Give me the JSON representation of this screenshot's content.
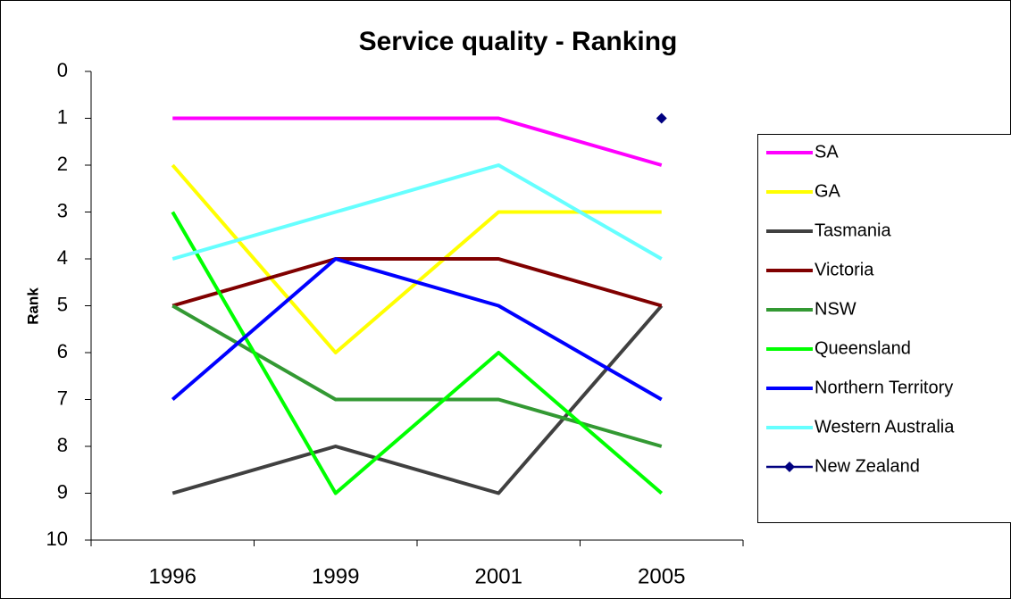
{
  "chart_data": {
    "type": "line",
    "title": "Service quality - Ranking",
    "y_label": "Rank",
    "categories": [
      "1996",
      "1999",
      "2001",
      "2005"
    ],
    "series": [
      {
        "name": "SA",
        "color": "#ff00ff",
        "values": [
          1,
          1,
          1,
          2
        ]
      },
      {
        "name": "GA",
        "color": "#ffff00",
        "values": [
          2,
          6,
          3,
          3
        ]
      },
      {
        "name": "Tasmania",
        "color": "#404040",
        "values": [
          9,
          8,
          9,
          5
        ]
      },
      {
        "name": "Victoria",
        "color": "#800000",
        "values": [
          5,
          4,
          4,
          5
        ]
      },
      {
        "name": "NSW",
        "color": "#339933",
        "values": [
          5,
          7,
          7,
          8
        ]
      },
      {
        "name": "Queensland",
        "color": "#00ff00",
        "values": [
          3,
          9,
          6,
          9
        ]
      },
      {
        "name": "Northern Territory",
        "color": "#0000ff",
        "values": [
          7,
          4,
          5,
          7
        ]
      },
      {
        "name": "Western Australia",
        "color": "#66ffff",
        "values": [
          4,
          3,
          2,
          4
        ]
      },
      {
        "name": "New Zealand",
        "color": "#000080",
        "values": [
          null,
          null,
          null,
          1
        ],
        "marker": "diamond"
      }
    ],
    "ylim": [
      0,
      10
    ],
    "yticks": [
      0,
      1,
      2,
      3,
      4,
      5,
      6,
      7,
      8,
      9,
      10
    ],
    "y_reversed": true,
    "legend": "right"
  }
}
